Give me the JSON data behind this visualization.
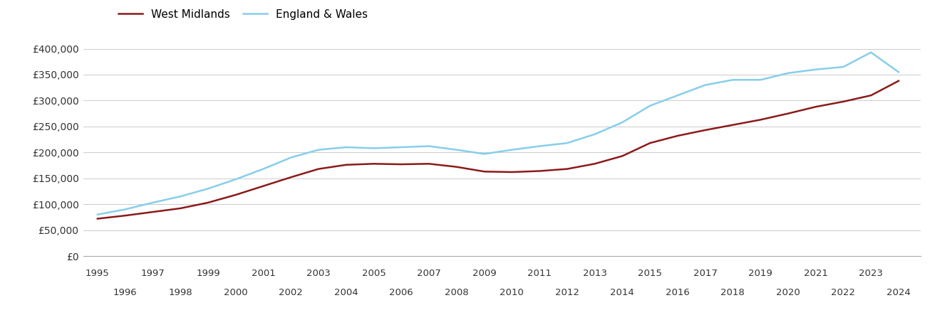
{
  "west_midlands": {
    "years": [
      1995,
      1996,
      1997,
      1998,
      1999,
      2000,
      2001,
      2002,
      2003,
      2004,
      2005,
      2006,
      2007,
      2008,
      2009,
      2010,
      2011,
      2012,
      2013,
      2014,
      2015,
      2016,
      2017,
      2018,
      2019,
      2020,
      2021,
      2022,
      2023,
      2024
    ],
    "values": [
      72000,
      78000,
      85000,
      92000,
      103000,
      118000,
      135000,
      152000,
      168000,
      176000,
      178000,
      177000,
      178000,
      172000,
      163000,
      162000,
      164000,
      168000,
      178000,
      193000,
      218000,
      232000,
      243000,
      253000,
      263000,
      275000,
      288000,
      298000,
      310000,
      338000
    ]
  },
  "england_wales": {
    "years": [
      1995,
      1996,
      1997,
      1998,
      1999,
      2000,
      2001,
      2002,
      2003,
      2004,
      2005,
      2006,
      2007,
      2008,
      2009,
      2010,
      2011,
      2012,
      2013,
      2014,
      2015,
      2016,
      2017,
      2018,
      2019,
      2020,
      2021,
      2022,
      2023,
      2024
    ],
    "values": [
      80000,
      90000,
      103000,
      115000,
      130000,
      148000,
      168000,
      190000,
      205000,
      210000,
      208000,
      210000,
      212000,
      205000,
      197000,
      205000,
      212000,
      218000,
      235000,
      258000,
      290000,
      310000,
      330000,
      340000,
      340000,
      353000,
      360000,
      365000,
      393000,
      355000
    ]
  },
  "west_midlands_color": "#8B1A1A",
  "england_wales_color": "#87CEEB",
  "west_midlands_label": "West Midlands",
  "england_wales_label": "England & Wales",
  "ylim": [
    0,
    420000
  ],
  "yticks": [
    0,
    50000,
    100000,
    150000,
    200000,
    250000,
    300000,
    350000,
    400000
  ],
  "ytick_labels": [
    "£0",
    "£50,000",
    "£100,000",
    "£150,000",
    "£200,000",
    "£250,000",
    "£300,000",
    "£350,000",
    "£400,000"
  ],
  "xlim_start": 1994.5,
  "xlim_end": 2024.8,
  "xticks_top": [
    1995,
    1997,
    1999,
    2001,
    2003,
    2005,
    2007,
    2009,
    2011,
    2013,
    2015,
    2017,
    2019,
    2021,
    2023
  ],
  "xticks_bottom": [
    1996,
    1998,
    2000,
    2002,
    2004,
    2006,
    2008,
    2010,
    2012,
    2014,
    2016,
    2018,
    2020,
    2022,
    2024
  ],
  "line_width": 1.8,
  "background_color": "#ffffff",
  "grid_color": "#cccccc"
}
